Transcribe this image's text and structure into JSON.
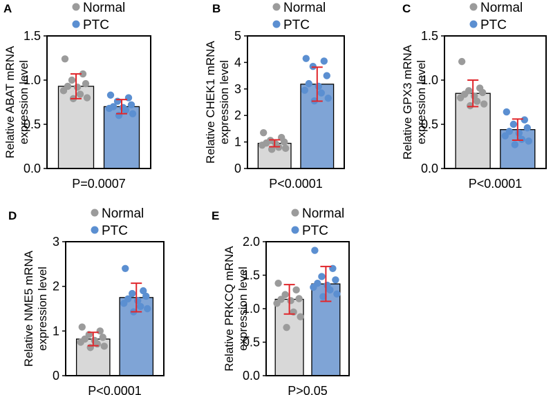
{
  "colors": {
    "normal_bar": "#d8d8d8",
    "ptc_bar": "#7fa4d6",
    "normal_dot": "#9b9b9b",
    "ptc_dot": "#5b8fd1",
    "error_bar": "#e0262b",
    "axis": "#000000"
  },
  "chart_data": [
    {
      "type": "bar",
      "panel": "A",
      "legend": [
        "Normal",
        "PTC"
      ],
      "categories": [
        "Normal",
        "PTC"
      ],
      "ylabel_line1": "Relative ABAT mRNA",
      "ylabel_line2": "expression level",
      "ylim": [
        0,
        1.5
      ],
      "yticks": [
        0,
        0.5,
        1.0,
        1.5
      ],
      "ytick_labels": [
        "0.0",
        "0.5",
        "1.0",
        "1.5"
      ],
      "series": [
        {
          "name": "Normal",
          "mean": 0.93,
          "sd": 0.14,
          "points": [
            1.24,
            1.07,
            1.0,
            0.96,
            0.93,
            0.92,
            0.88,
            0.84,
            0.8,
            0.79
          ]
        },
        {
          "name": "PTC",
          "mean": 0.7,
          "sd": 0.08,
          "points": [
            0.83,
            0.8,
            0.76,
            0.72,
            0.7,
            0.69,
            0.68,
            0.66,
            0.62,
            0.6
          ]
        }
      ],
      "pvalue": "P=0.0007"
    },
    {
      "type": "bar",
      "panel": "B",
      "legend": [
        "Normal",
        "PTC"
      ],
      "categories": [
        "Normal",
        "PTC"
      ],
      "ylabel_line1": "Relative CHEK1 mRNA",
      "ylabel_line2": "expression level",
      "ylim": [
        0,
        5
      ],
      "yticks": [
        0,
        1,
        2,
        3,
        4,
        5
      ],
      "ytick_labels": [
        "0",
        "1",
        "2",
        "3",
        "4",
        "5"
      ],
      "series": [
        {
          "name": "Normal",
          "mean": 0.95,
          "sd": 0.13,
          "points": [
            1.35,
            1.17,
            1.06,
            1.0,
            0.96,
            0.92,
            0.88,
            0.8,
            0.76,
            0.72
          ]
        },
        {
          "name": "PTC",
          "mean": 3.18,
          "sd": 0.64,
          "points": [
            4.15,
            4.05,
            3.85,
            3.5,
            3.2,
            3.1,
            2.95,
            2.85,
            2.65,
            2.55
          ]
        }
      ],
      "pvalue": "P<0.0001"
    },
    {
      "type": "bar",
      "panel": "C",
      "legend": [
        "Normal",
        "PTC"
      ],
      "categories": [
        "Normal",
        "PTC"
      ],
      "ylabel_line1": "Relative GPX3 mRNA",
      "ylabel_line2": "expression level",
      "ylim": [
        0,
        1.5
      ],
      "yticks": [
        0,
        0.5,
        1.0,
        1.5
      ],
      "ytick_labels": [
        "0.0",
        "0.5",
        "1.0",
        "1.5"
      ],
      "series": [
        {
          "name": "Normal",
          "mean": 0.85,
          "sd": 0.15,
          "points": [
            1.21,
            0.91,
            0.88,
            0.86,
            0.84,
            0.82,
            0.8,
            0.76,
            0.73,
            0.71
          ]
        },
        {
          "name": "PTC",
          "mean": 0.44,
          "sd": 0.12,
          "points": [
            0.64,
            0.55,
            0.5,
            0.46,
            0.42,
            0.4,
            0.37,
            0.33,
            0.31,
            0.27
          ]
        }
      ],
      "pvalue": "P<0.0001"
    },
    {
      "type": "bar",
      "panel": "D",
      "legend": [
        "Normal",
        "PTC"
      ],
      "categories": [
        "Normal",
        "PTC"
      ],
      "ylabel_line1": "Relative NME5 mRNA",
      "ylabel_line2": "expression level",
      "ylim": [
        0,
        3
      ],
      "yticks": [
        0,
        1,
        2,
        3
      ],
      "ytick_labels": [
        "0",
        "1",
        "2",
        "3"
      ],
      "series": [
        {
          "name": "Normal",
          "mean": 0.82,
          "sd": 0.15,
          "points": [
            1.09,
            1.0,
            0.92,
            0.86,
            0.82,
            0.79,
            0.75,
            0.71,
            0.66,
            0.63
          ]
        },
        {
          "name": "PTC",
          "mean": 1.75,
          "sd": 0.32,
          "points": [
            2.4,
            1.9,
            1.84,
            1.78,
            1.72,
            1.68,
            1.62,
            1.55,
            1.5,
            1.43
          ]
        }
      ],
      "pvalue": "P<0.0001"
    },
    {
      "type": "bar",
      "panel": "E",
      "legend": [
        "Normal",
        "PTC"
      ],
      "categories": [
        "Normal",
        "PTC"
      ],
      "ylabel_line1": "Relative PRKCQ mRNA",
      "ylabel_line2": "expression level",
      "ylim": [
        0,
        2.0
      ],
      "yticks": [
        0,
        0.5,
        1.0,
        1.5,
        2.0
      ],
      "ytick_labels": [
        "0.0",
        "0.5",
        "1.0",
        "1.5",
        "2.0"
      ],
      "series": [
        {
          "name": "Normal",
          "mean": 1.14,
          "sd": 0.22,
          "points": [
            1.38,
            1.28,
            1.21,
            1.15,
            1.14,
            1.12,
            1.08,
            0.95,
            0.88,
            0.72
          ]
        },
        {
          "name": "PTC",
          "mean": 1.37,
          "sd": 0.26,
          "points": [
            1.87,
            1.6,
            1.48,
            1.43,
            1.38,
            1.35,
            1.32,
            1.28,
            1.22,
            1.18
          ]
        }
      ],
      "pvalue": "P>0.05"
    }
  ]
}
